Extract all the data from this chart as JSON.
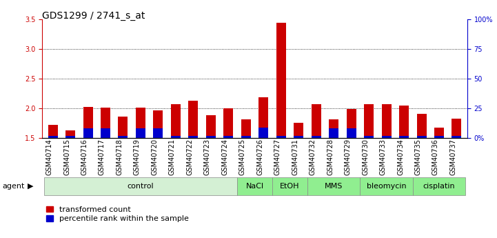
{
  "title": "GDS1299 / 2741_s_at",
  "samples": [
    "GSM40714",
    "GSM40715",
    "GSM40716",
    "GSM40717",
    "GSM40718",
    "GSM40719",
    "GSM40720",
    "GSM40721",
    "GSM40722",
    "GSM40723",
    "GSM40724",
    "GSM40725",
    "GSM40726",
    "GSM40727",
    "GSM40731",
    "GSM40732",
    "GSM40728",
    "GSM40729",
    "GSM40730",
    "GSM40733",
    "GSM40734",
    "GSM40735",
    "GSM40736",
    "GSM40737"
  ],
  "red_values": [
    1.72,
    1.63,
    2.02,
    2.01,
    1.86,
    2.01,
    1.97,
    2.07,
    2.13,
    1.88,
    2.0,
    1.82,
    2.19,
    3.44,
    1.76,
    2.07,
    1.81,
    1.99,
    2.07,
    2.07,
    2.05,
    1.91,
    1.68,
    1.83
  ],
  "blue_percentile": [
    2,
    2,
    8,
    8,
    2,
    8,
    8,
    2,
    2,
    2,
    2,
    2,
    9,
    2,
    2,
    2,
    8,
    8,
    2,
    2,
    2,
    2,
    2,
    2
  ],
  "ylim_left": [
    1.5,
    3.5
  ],
  "ylim_right": [
    0,
    100
  ],
  "yticks_left": [
    1.5,
    2.0,
    2.5,
    3.0,
    3.5
  ],
  "yticks_right": [
    0,
    25,
    50,
    75,
    100
  ],
  "ytick_labels_right": [
    "0%",
    "25",
    "50",
    "75",
    "100%"
  ],
  "agent_groups": [
    {
      "label": "control",
      "start": 0,
      "end": 11,
      "color": "#d4f0d4"
    },
    {
      "label": "NaCl",
      "start": 11,
      "end": 13,
      "color": "#90ee90"
    },
    {
      "label": "EtOH",
      "start": 13,
      "end": 15,
      "color": "#90ee90"
    },
    {
      "label": "MMS",
      "start": 15,
      "end": 18,
      "color": "#90ee90"
    },
    {
      "label": "bleomycin",
      "start": 18,
      "end": 21,
      "color": "#90ee90"
    },
    {
      "label": "cisplatin",
      "start": 21,
      "end": 24,
      "color": "#90ee90"
    }
  ],
  "bar_color_red": "#cc0000",
  "bar_color_blue": "#0000cc",
  "background_color": "#ffffff",
  "ylabel_left_color": "#cc0000",
  "ylabel_right_color": "#0000cc",
  "bar_width": 0.55,
  "title_fontsize": 10,
  "tick_fontsize": 7,
  "agent_fontsize": 8,
  "legend_fontsize": 8
}
